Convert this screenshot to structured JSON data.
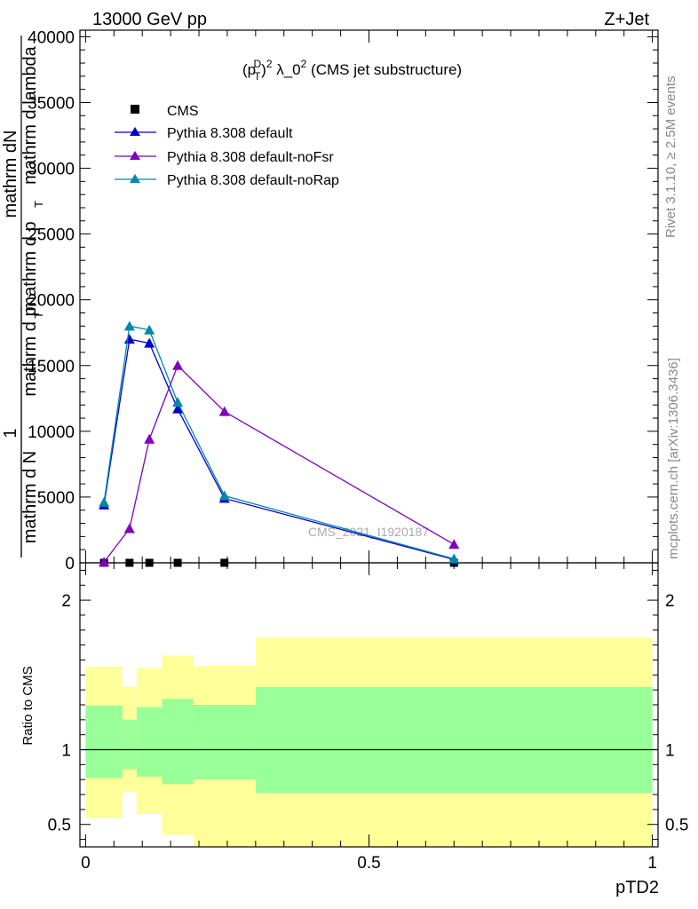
{
  "header": {
    "left": "13000 GeV pp",
    "right": "Z+Jet"
  },
  "side_labels": {
    "rivet": "Rivet 3.1.10, ≥ 2.5M events",
    "mcplots": "mcplots.cern.ch [arXiv:1306.3436]"
  },
  "watermark": "CMS_2021_I1920187",
  "chart_data": [
    {
      "type": "line",
      "title": "(p_T^D)^2 λ_0^2 (CMS jet substructure)",
      "title_parts": {
        "pre": "(p",
        "sub": "T",
        "sup": "D",
        "post1": ")",
        "sup2": "2",
        "post2": " λ_0",
        "sup3": "2",
        "post3": " (CMS jet substructure)"
      },
      "ylabel_lines": [
        "1",
        "mathrm d N",
        "mathrm dN",
        "mathrm d p",
        "T",
        "mathrm d p",
        "T",
        "mathrm d lambda"
      ],
      "ylim": [
        0,
        40500
      ],
      "xlim": [
        -0.01,
        1.01
      ],
      "yticks": [
        0,
        5000,
        10000,
        15000,
        20000,
        25000,
        30000,
        35000,
        40000
      ],
      "ytick_labels": [
        "0",
        "5000",
        "10000",
        "15000",
        "20000",
        "25000",
        "30000",
        "35000",
        "40000"
      ],
      "legend_position": "top-left",
      "series": [
        {
          "name": "CMS",
          "color": "#000000",
          "marker": "square",
          "line": false,
          "x": [
            0.0325,
            0.0775,
            0.1125,
            0.1625,
            0.245,
            0.65
          ],
          "y": [
            0,
            0,
            0,
            0,
            0,
            0
          ]
        },
        {
          "name": "Pythia 8.308 default",
          "color": "#0000cc",
          "marker": "triangle",
          "line": true,
          "x": [
            0.0325,
            0.0775,
            0.1125,
            0.1625,
            0.245,
            0.65
          ],
          "y": [
            4400,
            17000,
            16700,
            11700,
            4900,
            250
          ]
        },
        {
          "name": "Pythia 8.308 default-noFsr",
          "color": "#7f00bf",
          "marker": "triangle",
          "line": true,
          "x": [
            0.0325,
            0.0775,
            0.1125,
            0.1625,
            0.245,
            0.65
          ],
          "y": [
            50,
            2600,
            9400,
            15000,
            11500,
            1400
          ]
        },
        {
          "name": "Pythia 8.308 default-noRap",
          "color": "#0088aa",
          "marker": "triangle",
          "line": true,
          "x": [
            0.0325,
            0.0775,
            0.1125,
            0.1625,
            0.245,
            0.65
          ],
          "y": [
            4600,
            18000,
            17700,
            12200,
            5100,
            300
          ]
        }
      ]
    },
    {
      "type": "area",
      "ylabel": "Ratio to CMS",
      "xlabel": "pTD2",
      "xlim": [
        -0.01,
        1.01
      ],
      "ylim": [
        0.35,
        2.25
      ],
      "yticks": [
        0.5,
        1,
        2
      ],
      "ytick_labels": [
        "0.5",
        "1",
        "2"
      ],
      "xticks": [
        0,
        0.5,
        1
      ],
      "xtick_labels": [
        "0",
        "0.5",
        "1"
      ],
      "reference_line": 1,
      "bands": {
        "yellow": "#ffff99",
        "green": "#99ff99",
        "bins": [
          {
            "x": [
              0.0,
              0.065
            ],
            "yellow": [
              0.545,
              1.555
            ],
            "green": [
              0.81,
              1.295
            ]
          },
          {
            "x": [
              0.065,
              0.09
            ],
            "yellow": [
              0.715,
              1.42
            ],
            "green": [
              0.87,
              1.2
            ]
          },
          {
            "x": [
              0.09,
              0.135
            ],
            "yellow": [
              0.57,
              1.545
            ],
            "green": [
              0.82,
              1.285
            ]
          },
          {
            "x": [
              0.135,
              0.19
            ],
            "yellow": [
              0.43,
              1.63
            ],
            "green": [
              0.77,
              1.34
            ]
          },
          {
            "x": [
              0.19,
              0.3
            ],
            "yellow": [
              0.2,
              1.56
            ],
            "green": [
              0.8,
              1.3
            ]
          },
          {
            "x": [
              0.3,
              1.0
            ],
            "yellow": [
              0.2,
              1.75
            ],
            "green": [
              0.71,
              1.42
            ]
          }
        ]
      }
    }
  ]
}
